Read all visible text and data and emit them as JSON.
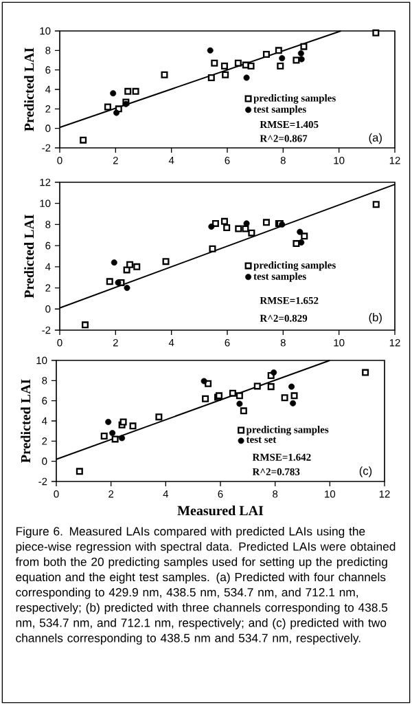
{
  "chart_data": [
    {
      "type": "scatter",
      "ylabel": "Predicted LAI",
      "xlim": [
        0,
        12
      ],
      "ylim": [
        -2,
        10
      ],
      "xticks": [
        0,
        2,
        4,
        6,
        8,
        10,
        12
      ],
      "yticks": [
        -2,
        0,
        2,
        4,
        6,
        8,
        10
      ],
      "legend": "bottom right",
      "annotations": [
        "RMSE=1.405",
        "R^2=0.867",
        "(a)"
      ],
      "series": [
        {
          "name": "predicting samples",
          "marker": "square",
          "color": "#000000",
          "x": [
            0.84,
            1.72,
            2.11,
            2.37,
            2.44,
            2.72,
            3.75,
            5.43,
            5.54,
            5.9,
            5.93,
            6.39,
            6.66,
            6.85,
            7.4,
            7.84,
            7.9,
            8.47,
            8.74,
            11.32
          ],
          "values": [
            -1.2,
            2.2,
            2.0,
            2.7,
            3.8,
            3.8,
            5.5,
            5.2,
            6.7,
            6.4,
            5.5,
            6.7,
            6.5,
            6.4,
            7.6,
            8.0,
            6.4,
            7.0,
            8.4,
            9.8
          ]
        },
        {
          "name": "test samples",
          "marker": "circle",
          "color": "#000000",
          "x": [
            1.91,
            2.03,
            2.37,
            5.39,
            6.69,
            7.96,
            8.64,
            8.66
          ],
          "values": [
            3.6,
            1.6,
            2.5,
            8.0,
            5.2,
            7.2,
            7.7,
            7.1
          ]
        },
        {
          "type": "line",
          "marker": "none",
          "color": "#000000",
          "x": [
            0,
            10.07
          ],
          "values": [
            0.1,
            10
          ]
        }
      ]
    },
    {
      "type": "scatter",
      "ylabel": "Predicted LAI",
      "xlim": [
        0,
        12
      ],
      "ylim": [
        -2,
        12
      ],
      "xticks": [
        0,
        2,
        4,
        6,
        8,
        10,
        12
      ],
      "yticks": [
        -2,
        0,
        2,
        4,
        6,
        8,
        10,
        12
      ],
      "legend": "bottom right",
      "annotations": [
        "RMSE=1.652",
        "R^2=0.829",
        "(b)"
      ],
      "series": [
        {
          "name": "predicting samples",
          "marker": "square",
          "color": "#000000",
          "x": [
            0.91,
            1.79,
            2.2,
            2.4,
            2.51,
            2.76,
            3.8,
            5.47,
            5.58,
            5.9,
            5.98,
            6.4,
            6.65,
            6.87,
            7.4,
            7.84,
            7.89,
            8.47,
            8.76,
            11.33
          ],
          "values": [
            -1.5,
            2.6,
            2.5,
            3.7,
            4.2,
            4.0,
            4.5,
            5.7,
            8.1,
            8.3,
            7.7,
            7.6,
            7.6,
            7.2,
            8.2,
            8.1,
            8.1,
            6.2,
            6.9,
            9.9
          ]
        },
        {
          "name": "test samples",
          "marker": "circle",
          "color": "#000000",
          "x": [
            1.95,
            2.09,
            2.41,
            5.43,
            6.69,
            7.96,
            8.6,
            8.65
          ],
          "values": [
            4.4,
            2.5,
            2.0,
            7.8,
            8.1,
            8.0,
            7.3,
            6.3
          ]
        },
        {
          "type": "line",
          "marker": "none",
          "color": "#000000",
          "x": [
            0,
            12
          ],
          "values": [
            0.1,
            11.8
          ]
        }
      ]
    },
    {
      "type": "scatter",
      "xlabel": "Measured LAI",
      "ylabel": "Predicted LAI",
      "xlim": [
        0,
        12
      ],
      "ylim": [
        -2,
        10
      ],
      "xticks": [
        0,
        2,
        4,
        6,
        8,
        10,
        12
      ],
      "yticks": [
        -2,
        0,
        2,
        4,
        6,
        8,
        10
      ],
      "legend": "bottom right",
      "annotations": [
        "RMSE=1.642",
        "R^2=0.783",
        "(c)",
        "Figure 6. Measured LAIs compared with predicted LAIs using the piece-wise regression with spectral data. Predicted LAIs were obtained from both the 20 predicting samples used for setting up the predicting equation and the eight test samples. (a) Predicted with four channels corresponding to 429.9 nm, 438.5 nm, 534.7 nm, and 712.1 nm, respectively; (b) predicted with three channels corresponding to 438.5 nm, 534.7 nm, and 712.1 nm, respectively; and (c) predicted with two channels corresponding to 438.5 nm and 534.7 nm, respectively."
      ],
      "series": [
        {
          "name": "predicting samples",
          "marker": "square",
          "color": "#000000",
          "x": [
            0.85,
            1.75,
            2.15,
            2.4,
            2.45,
            2.8,
            3.75,
            5.45,
            5.55,
            5.9,
            5.95,
            6.45,
            6.7,
            6.85,
            7.35,
            7.85,
            7.85,
            8.35,
            8.7,
            11.3
          ],
          "values": [
            -1.0,
            2.5,
            2.2,
            3.6,
            3.9,
            3.5,
            4.4,
            6.2,
            7.7,
            6.35,
            6.5,
            6.75,
            6.5,
            5.0,
            7.45,
            8.5,
            7.4,
            6.3,
            6.5,
            8.8
          ]
        },
        {
          "name": "test set",
          "marker": "circle",
          "color": "#000000",
          "x": [
            1.9,
            2.05,
            2.4,
            5.4,
            6.7,
            7.95,
            8.6,
            8.65
          ],
          "values": [
            3.9,
            2.8,
            2.3,
            7.95,
            5.7,
            8.8,
            7.4,
            5.75
          ]
        },
        {
          "type": "line",
          "marker": "none",
          "color": "#000000",
          "x": [
            0,
            10.0
          ],
          "values": [
            0.2,
            10
          ]
        }
      ]
    }
  ]
}
